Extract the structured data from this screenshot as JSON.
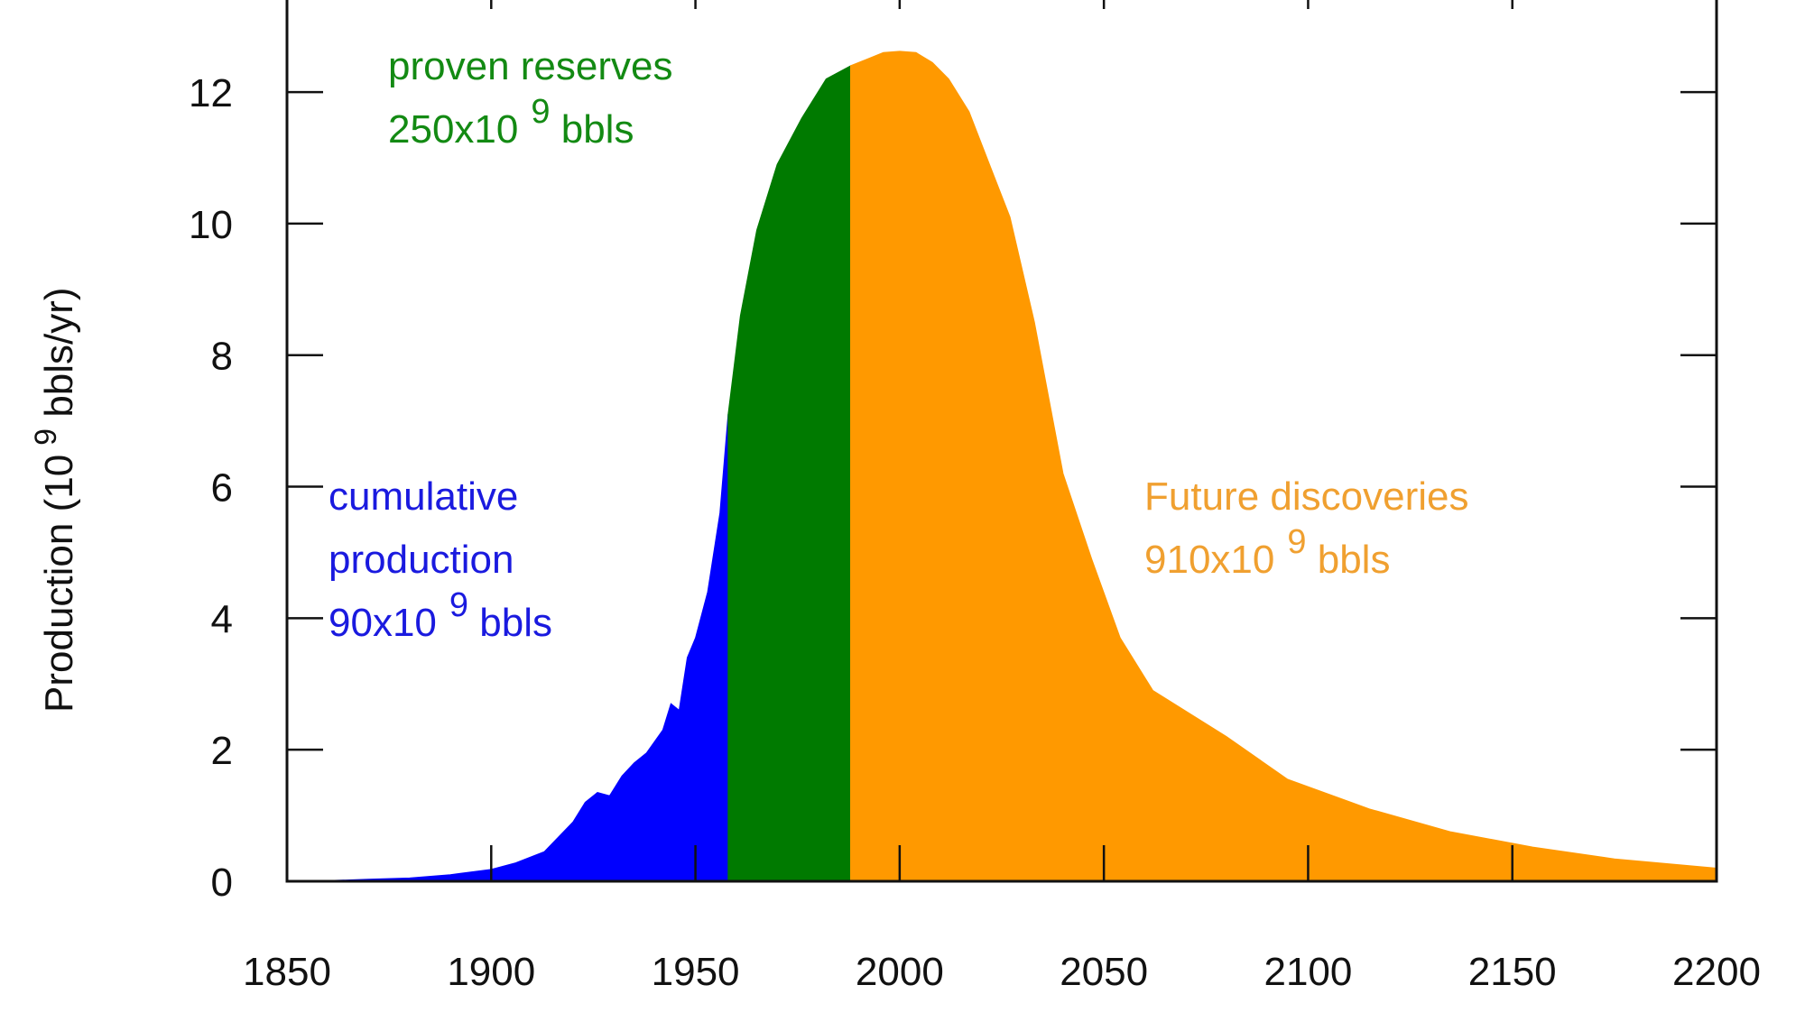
{
  "chart_data": {
    "type": "area",
    "title": "",
    "xlabel": "",
    "ylabel": {
      "prefix": "Production (10",
      "exponent": "9",
      "suffix": " bbls/yr)"
    },
    "xlim": [
      1850,
      2200
    ],
    "ylim": [
      0,
      13.4
    ],
    "x_ticks": [
      1850,
      1900,
      1950,
      2000,
      2050,
      2100,
      2150,
      2200
    ],
    "y_ticks": [
      0,
      2,
      4,
      6,
      8,
      10,
      12
    ],
    "grid": false,
    "x": [
      1850,
      1860,
      1870,
      1880,
      1890,
      1900,
      1906,
      1913,
      1920,
      1923,
      1926,
      1929,
      1932,
      1935,
      1938,
      1942,
      1944,
      1946,
      1948,
      1950,
      1953,
      1956,
      1958,
      1961,
      1965,
      1970,
      1976,
      1982,
      1988,
      1992,
      1996,
      2000,
      2004,
      2008,
      2012,
      2017,
      2022,
      2027,
      2033,
      2040,
      2047,
      2054,
      2062,
      2080,
      2095,
      2115,
      2135,
      2155,
      2175,
      2200
    ],
    "y": [
      0.0,
      0.01,
      0.03,
      0.05,
      0.1,
      0.18,
      0.28,
      0.45,
      0.9,
      1.2,
      1.35,
      1.3,
      1.6,
      1.8,
      1.95,
      2.3,
      2.7,
      2.6,
      3.4,
      3.7,
      4.4,
      5.6,
      7.1,
      8.6,
      9.9,
      10.9,
      11.6,
      12.2,
      12.4,
      12.5,
      12.6,
      12.62,
      12.6,
      12.45,
      12.2,
      11.7,
      10.9,
      10.1,
      8.5,
      6.2,
      4.9,
      3.7,
      2.9,
      2.2,
      1.55,
      1.1,
      0.75,
      0.52,
      0.34,
      0.2
    ],
    "segments": [
      {
        "name": "cumulative production",
        "x_start": 1850,
        "x_end": 1958,
        "color": "#0000ff"
      },
      {
        "name": "proven reserves",
        "x_start": 1958,
        "x_end": 1988,
        "color": "#007a00"
      },
      {
        "name": "Future discoveries",
        "x_start": 1988,
        "x_end": 2200,
        "color": "#ff9900"
      }
    ],
    "annotations": [
      {
        "key": "cumulative",
        "lines": [
          "cumulative",
          "production"
        ],
        "base": "90x10",
        "exponent": "9",
        "unit": " bbls",
        "color": "#1a1adf"
      },
      {
        "key": "proven",
        "lines": [
          "proven reserves"
        ],
        "base": "250x10",
        "exponent": "9",
        "unit": " bbls",
        "color": "#138a13"
      },
      {
        "key": "future",
        "lines": [
          "Future discoveries"
        ],
        "base": "910x10",
        "exponent": "9",
        "unit": " bbls",
        "color": "#f0a030"
      }
    ]
  }
}
